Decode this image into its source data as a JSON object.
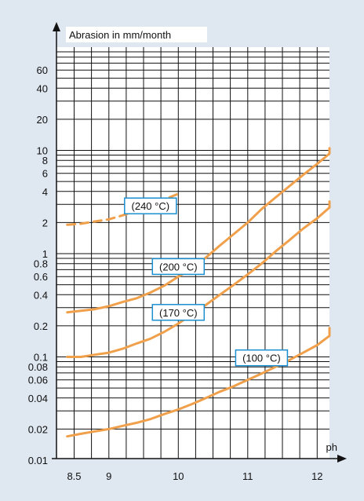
{
  "chart_data": {
    "type": "line",
    "ylabel": "Abrasion in mm/month",
    "xlabel": "ph",
    "y_scale": "log",
    "ylim": [
      0.01,
      100
    ],
    "xlim": [
      8.4,
      12.3
    ],
    "grid": true,
    "x_ticks": [
      "8.5",
      "9",
      "10",
      "11",
      "12"
    ],
    "y_ticks": [
      "0.01",
      "0.02",
      "0.04",
      "0.06",
      "0.08",
      "0.1",
      "0.2",
      "0.4",
      "0.6",
      "0.8",
      "1",
      "2",
      "4",
      "6",
      "8",
      "10",
      "20",
      "40",
      "60"
    ],
    "colors": {
      "series": "#f0a04b",
      "background": "#dfe7f1",
      "plot": "#ffffff",
      "grid": "#111111",
      "label_border": "#1a8fd1"
    },
    "series": [
      {
        "name": "(240 °C)",
        "style": "dashed",
        "x": [
          8.4,
          8.6,
          8.8,
          9.0,
          9.2,
          9.4,
          9.6,
          9.8,
          10.0
        ],
        "y": [
          1.9,
          1.95,
          2.05,
          2.15,
          2.35,
          2.6,
          2.95,
          3.35,
          3.8
        ]
      },
      {
        "name": "(200 °C)",
        "style": "solid",
        "x": [
          8.4,
          8.6,
          8.8,
          9.0,
          9.2,
          9.4,
          9.6,
          9.8,
          10.0,
          10.2,
          10.4,
          10.6,
          10.8,
          11.0,
          11.2,
          11.4,
          11.6,
          11.8,
          12.0,
          12.2,
          12.3
        ],
        "y": [
          0.27,
          0.28,
          0.29,
          0.31,
          0.34,
          0.37,
          0.42,
          0.49,
          0.6,
          0.72,
          0.92,
          1.2,
          1.55,
          2.0,
          2.7,
          3.5,
          4.5,
          5.8,
          7.4,
          9.3,
          10.5
        ]
      },
      {
        "name": "(170 °C)",
        "style": "solid",
        "x": [
          8.4,
          8.6,
          8.8,
          9.0,
          9.2,
          9.4,
          9.6,
          9.8,
          10.0,
          10.2,
          10.4,
          10.6,
          10.8,
          11.0,
          11.2,
          11.4,
          11.6,
          11.8,
          12.0,
          12.2,
          12.3
        ],
        "y": [
          0.1,
          0.1,
          0.105,
          0.11,
          0.12,
          0.135,
          0.15,
          0.175,
          0.21,
          0.26,
          0.32,
          0.4,
          0.5,
          0.63,
          0.8,
          1.05,
          1.35,
          1.75,
          2.2,
          2.8,
          3.2
        ]
      },
      {
        "name": "(100 °C)",
        "style": "solid",
        "x": [
          8.4,
          8.6,
          8.8,
          9.0,
          9.2,
          9.4,
          9.6,
          9.8,
          10.0,
          10.2,
          10.4,
          10.6,
          10.8,
          11.0,
          11.2,
          11.4,
          11.6,
          11.8,
          12.0,
          12.2,
          12.3
        ],
        "y": [
          0.017,
          0.018,
          0.019,
          0.02,
          0.0215,
          0.023,
          0.025,
          0.028,
          0.031,
          0.035,
          0.04,
          0.046,
          0.052,
          0.06,
          0.069,
          0.08,
          0.093,
          0.11,
          0.13,
          0.16,
          0.19
        ]
      }
    ]
  }
}
